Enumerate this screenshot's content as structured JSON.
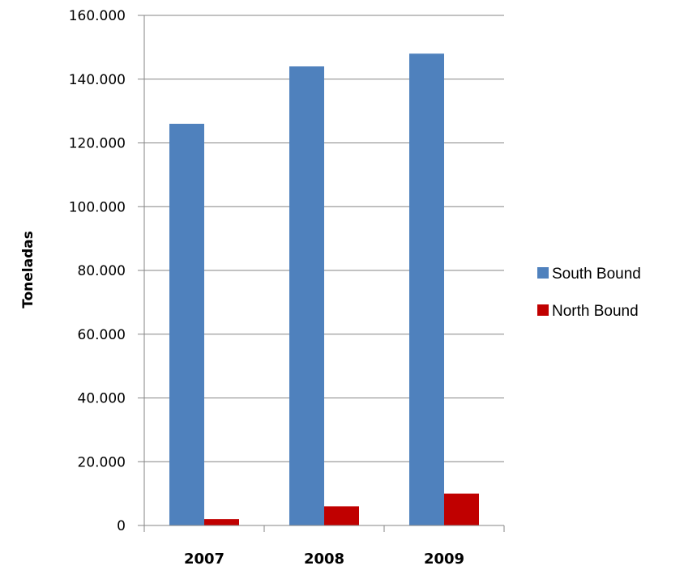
{
  "chart_data": {
    "type": "bar",
    "categories": [
      "2007",
      "2008",
      "2009"
    ],
    "series": [
      {
        "name": "South Bound",
        "color": "#4f81bd",
        "values": [
          126000,
          144000,
          148000
        ]
      },
      {
        "name": "North Bound",
        "color": "#c00000",
        "values": [
          2000,
          6000,
          10000
        ]
      }
    ],
    "ylabel": "Toneladas",
    "xlabel": "",
    "ylim": [
      0,
      160000
    ],
    "yticks": [
      0,
      20000,
      40000,
      60000,
      80000,
      100000,
      120000,
      140000,
      160000
    ],
    "ytick_labels": [
      "0",
      "20.000",
      "40.000",
      "60.000",
      "80.000",
      "100.000",
      "120.000",
      "140.000",
      "160.000"
    ],
    "grid": true,
    "legend_position": "right"
  }
}
